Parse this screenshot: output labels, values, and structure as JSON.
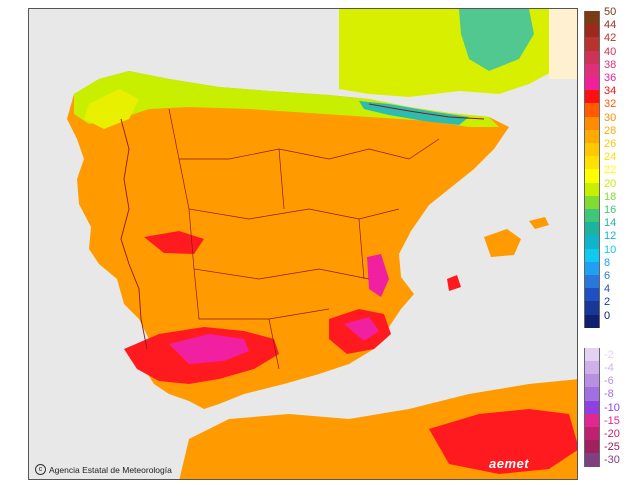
{
  "map": {
    "credit": "Agencia Estatal de Meteorología",
    "brand": "aemet",
    "colors": {
      "sea": "#e8e8e8",
      "land_base": "#ff9a00",
      "border": "#8b1a1a"
    }
  },
  "legend": {
    "warm": [
      {
        "label": "50",
        "color": "#7a3b16"
      },
      {
        "label": "44",
        "color": "#9c2a1c"
      },
      {
        "label": "42",
        "color": "#b8322e"
      },
      {
        "label": "40",
        "color": "#cc3357"
      },
      {
        "label": "38",
        "color": "#e0307a"
      },
      {
        "label": "36",
        "color": "#f0209a"
      },
      {
        "label": "34",
        "color": "#ff1010"
      },
      {
        "label": "32",
        "color": "#ff5a00"
      },
      {
        "label": "30",
        "color": "#ff8c00"
      },
      {
        "label": "28",
        "color": "#ffaa00"
      },
      {
        "label": "26",
        "color": "#ffc800"
      },
      {
        "label": "24",
        "color": "#ffe000"
      },
      {
        "label": "22",
        "color": "#ffff00"
      },
      {
        "label": "20",
        "color": "#c8ee00"
      },
      {
        "label": "18",
        "color": "#80dc30"
      },
      {
        "label": "16",
        "color": "#3cc878"
      },
      {
        "label": "14",
        "color": "#1cb4a0"
      },
      {
        "label": "12",
        "color": "#10b4c8"
      },
      {
        "label": "10",
        "color": "#10c8f0"
      },
      {
        "label": "8",
        "color": "#20a0f0"
      },
      {
        "label": "6",
        "color": "#2878dc"
      },
      {
        "label": "4",
        "color": "#2050c0"
      },
      {
        "label": "2",
        "color": "#183898"
      },
      {
        "label": "0",
        "color": "#102070"
      }
    ],
    "cold": [
      {
        "label": "-2",
        "color": "#e4d0f0"
      },
      {
        "label": "-4",
        "color": "#d0b0e8"
      },
      {
        "label": "-6",
        "color": "#b890e0"
      },
      {
        "label": "-8",
        "color": "#a070e0"
      },
      {
        "label": "-10",
        "color": "#9040e0"
      },
      {
        "label": "-15",
        "color": "#e02890"
      },
      {
        "label": "-20",
        "color": "#c02070"
      },
      {
        "label": "-25",
        "color": "#a02060"
      },
      {
        "label": "-30",
        "color": "#804080"
      }
    ]
  }
}
